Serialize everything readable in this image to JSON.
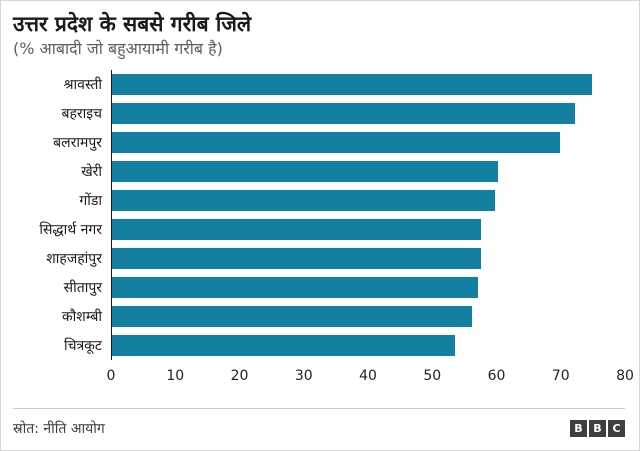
{
  "chart_data": {
    "type": "bar",
    "orientation": "horizontal",
    "title": "उत्तर प्रदेश के सबसे गरीब जिले",
    "subtitle": "(% आबादी जो बहुआयामी गरीब है)",
    "categories": [
      "श्रावस्ती",
      "बहराइच",
      "बलरामपुर",
      "खेरी",
      "गोंडा",
      "सिद्धार्थ नगर",
      "शाहजहांपुर",
      "सीतापुर",
      "कौशम्बी",
      "चित्रकूट"
    ],
    "values": [
      74.8,
      72.2,
      69.8,
      60.2,
      59.7,
      57.6,
      57.5,
      57.0,
      56.2,
      53.5
    ],
    "xlabel": "",
    "ylabel": "",
    "xlim": [
      0,
      80
    ],
    "x_ticks": [
      0,
      10,
      20,
      30,
      40,
      50,
      60,
      70,
      80
    ],
    "bar_color": "#1380A1",
    "axis_line_color": "#1a1a1a",
    "grid": false,
    "legend": false
  },
  "footer": {
    "source": "स्रोत: नीति आयोग",
    "logo_letters": [
      "B",
      "B",
      "C"
    ]
  }
}
